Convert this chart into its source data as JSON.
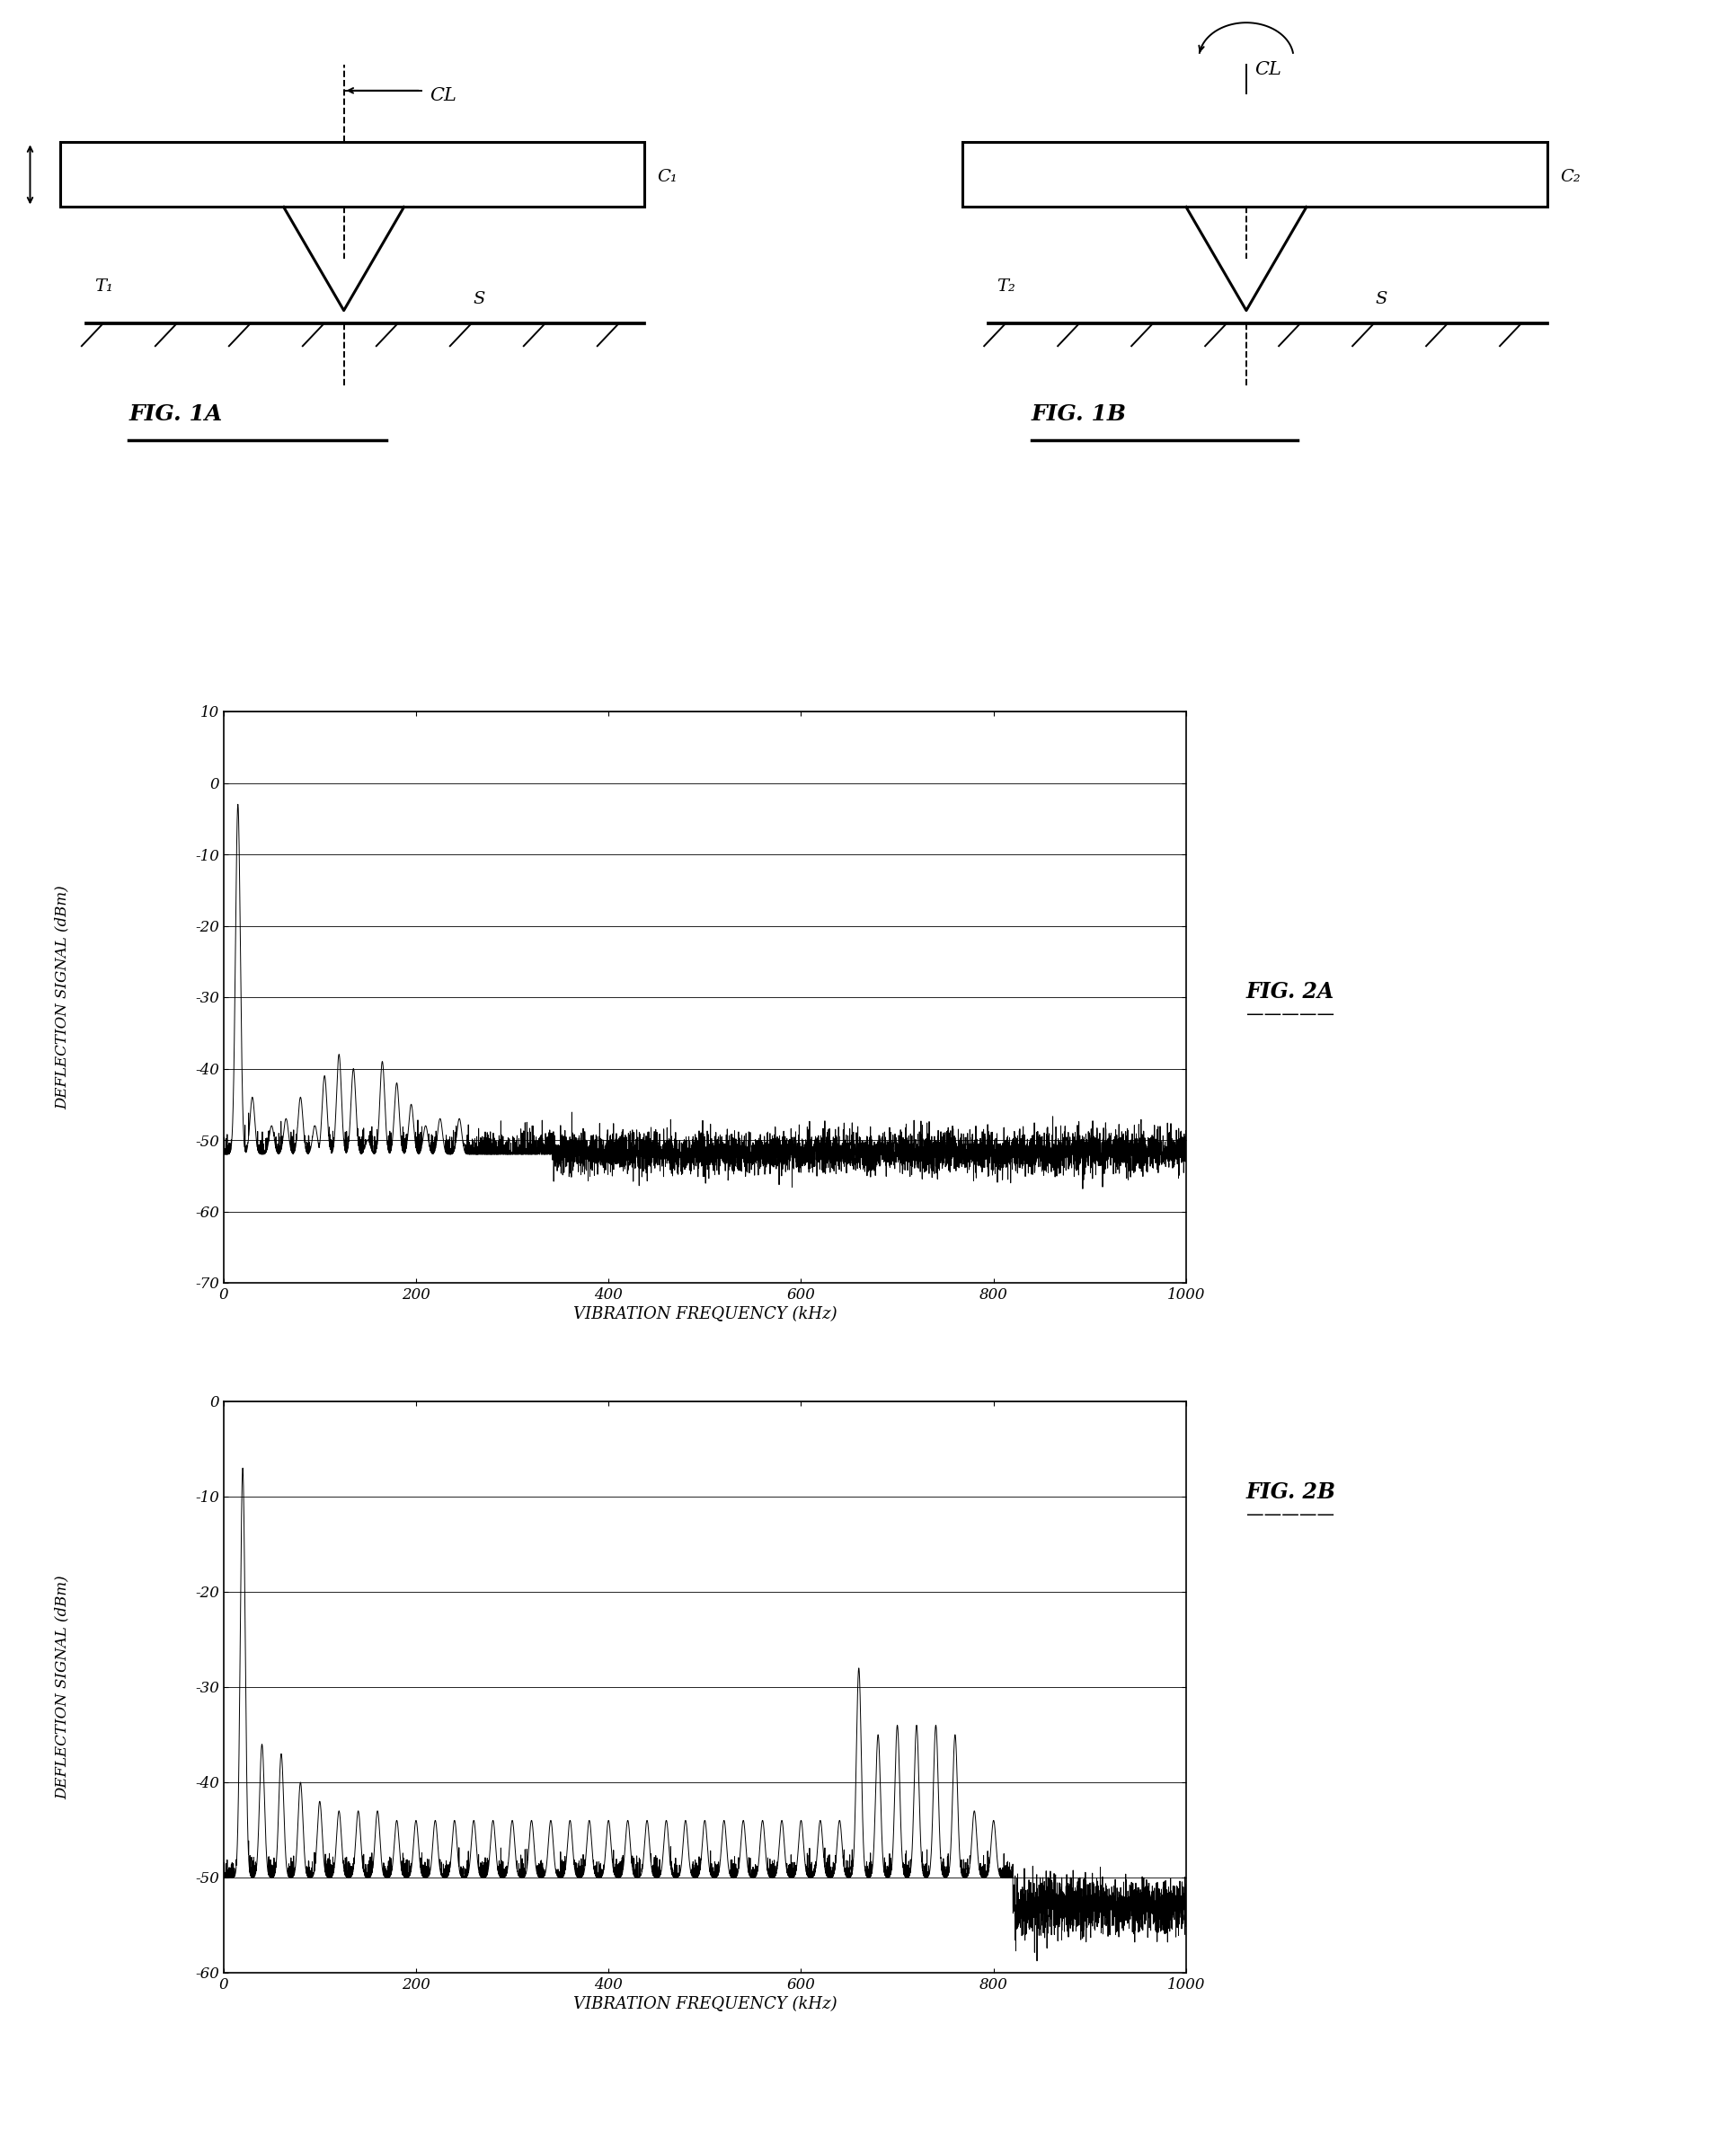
{
  "fig_size": [
    19.13,
    24.0
  ],
  "background_color": "#ffffff",
  "fig2a": {
    "ylabel": "DEFLECTION SIGNAL (dBm)",
    "xlabel": "VIBRATION FREQUENCY (kHz)",
    "ylim": [
      -70,
      10
    ],
    "xlim": [
      0,
      1000
    ],
    "yticks": [
      10,
      0,
      -10,
      -20,
      -30,
      -40,
      -50,
      -60,
      -70
    ],
    "xticks": [
      0,
      200,
      400,
      600,
      800,
      1000
    ],
    "label": "FIG. 2A",
    "noise_floor": -52,
    "main_peak_x": 15,
    "main_peak_y": -3,
    "peaks_a": [
      [
        15,
        -3
      ],
      [
        30,
        -44
      ],
      [
        50,
        -48
      ],
      [
        65,
        -47
      ],
      [
        80,
        -44
      ],
      [
        95,
        -48
      ],
      [
        105,
        -41
      ],
      [
        120,
        -38
      ],
      [
        135,
        -40
      ],
      [
        150,
        -50
      ],
      [
        165,
        -39
      ],
      [
        180,
        -42
      ],
      [
        195,
        -45
      ],
      [
        210,
        -48
      ],
      [
        225,
        -47
      ],
      [
        245,
        -47
      ]
    ]
  },
  "fig2b": {
    "ylabel": "DEFLECTION SIGNAL (dBm)",
    "xlabel": "VIBRATION FREQUENCY (kHz)",
    "ylim": [
      -60,
      0
    ],
    "xlim": [
      0,
      1000
    ],
    "yticks": [
      0,
      -10,
      -20,
      -30,
      -40,
      -50,
      -60
    ],
    "xticks": [
      0,
      200,
      400,
      600,
      800,
      1000
    ],
    "label": "FIG. 2B",
    "noise_floor": -50,
    "main_peak_x": 20,
    "main_peak_y": -7,
    "peaks_b": [
      [
        20,
        -7
      ],
      [
        40,
        -36
      ],
      [
        60,
        -37
      ],
      [
        80,
        -40
      ],
      [
        100,
        -42
      ],
      [
        120,
        -43
      ],
      [
        140,
        -43
      ],
      [
        160,
        -43
      ],
      [
        180,
        -44
      ],
      [
        200,
        -44
      ],
      [
        220,
        -44
      ],
      [
        240,
        -44
      ],
      [
        260,
        -44
      ],
      [
        280,
        -44
      ],
      [
        300,
        -44
      ],
      [
        320,
        -44
      ],
      [
        340,
        -44
      ],
      [
        360,
        -44
      ],
      [
        380,
        -44
      ],
      [
        400,
        -44
      ],
      [
        420,
        -44
      ],
      [
        440,
        -44
      ],
      [
        460,
        -44
      ],
      [
        480,
        -44
      ],
      [
        500,
        -44
      ],
      [
        520,
        -44
      ],
      [
        540,
        -44
      ],
      [
        560,
        -44
      ],
      [
        580,
        -44
      ],
      [
        600,
        -44
      ],
      [
        620,
        -44
      ],
      [
        640,
        -44
      ],
      [
        660,
        -28
      ],
      [
        680,
        -35
      ],
      [
        700,
        -34
      ],
      [
        720,
        -34
      ],
      [
        740,
        -34
      ],
      [
        760,
        -35
      ],
      [
        780,
        -43
      ],
      [
        800,
        -44
      ]
    ]
  }
}
